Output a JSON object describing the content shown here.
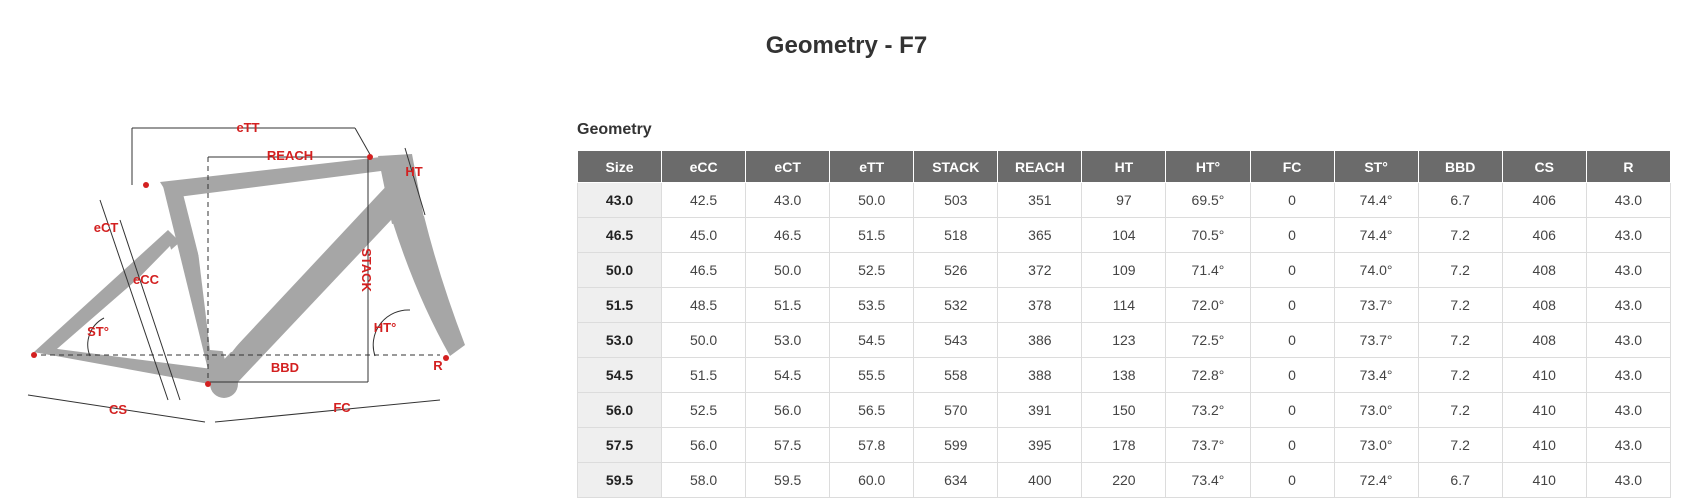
{
  "page": {
    "title": "Geometry - F7"
  },
  "diagram": {
    "labels": {
      "ett": "eTT",
      "reach": "REACH",
      "ht": "HT",
      "ect": "eCT",
      "ecc": "eCC",
      "stack": "STACK",
      "st_angle": "ST°",
      "ht_angle": "HT°",
      "bbd": "BBD",
      "r": "R",
      "cs": "CS",
      "fc": "FC"
    },
    "frame_color": "#a6a6a6",
    "label_color": "#d32020"
  },
  "table": {
    "heading": "Geometry",
    "columns": [
      "Size",
      "eCC",
      "eCT",
      "eTT",
      "STACK",
      "REACH",
      "HT",
      "HT°",
      "FC",
      "ST°",
      "BBD",
      "CS",
      "R"
    ],
    "rows": [
      [
        "43.0",
        "42.5",
        "43.0",
        "50.0",
        "503",
        "351",
        "97",
        "69.5°",
        "0",
        "74.4°",
        "6.7",
        "406",
        "43.0"
      ],
      [
        "46.5",
        "45.0",
        "46.5",
        "51.5",
        "518",
        "365",
        "104",
        "70.5°",
        "0",
        "74.4°",
        "7.2",
        "406",
        "43.0"
      ],
      [
        "50.0",
        "46.5",
        "50.0",
        "52.5",
        "526",
        "372",
        "109",
        "71.4°",
        "0",
        "74.0°",
        "7.2",
        "408",
        "43.0"
      ],
      [
        "51.5",
        "48.5",
        "51.5",
        "53.5",
        "532",
        "378",
        "114",
        "72.0°",
        "0",
        "73.7°",
        "7.2",
        "408",
        "43.0"
      ],
      [
        "53.0",
        "50.0",
        "53.0",
        "54.5",
        "543",
        "386",
        "123",
        "72.5°",
        "0",
        "73.7°",
        "7.2",
        "408",
        "43.0"
      ],
      [
        "54.5",
        "51.5",
        "54.5",
        "55.5",
        "558",
        "388",
        "138",
        "72.8°",
        "0",
        "73.4°",
        "7.2",
        "410",
        "43.0"
      ],
      [
        "56.0",
        "52.5",
        "56.0",
        "56.5",
        "570",
        "391",
        "150",
        "73.2°",
        "0",
        "73.0°",
        "7.2",
        "410",
        "43.0"
      ],
      [
        "57.5",
        "56.0",
        "57.5",
        "57.8",
        "599",
        "395",
        "178",
        "73.7°",
        "0",
        "73.0°",
        "7.2",
        "410",
        "43.0"
      ],
      [
        "59.5",
        "58.0",
        "59.5",
        "60.0",
        "634",
        "400",
        "220",
        "73.4°",
        "0",
        "72.4°",
        "6.7",
        "410",
        "43.0"
      ]
    ],
    "header_bg": "#6b6b6b",
    "size_cell_bg": "#efefef"
  }
}
